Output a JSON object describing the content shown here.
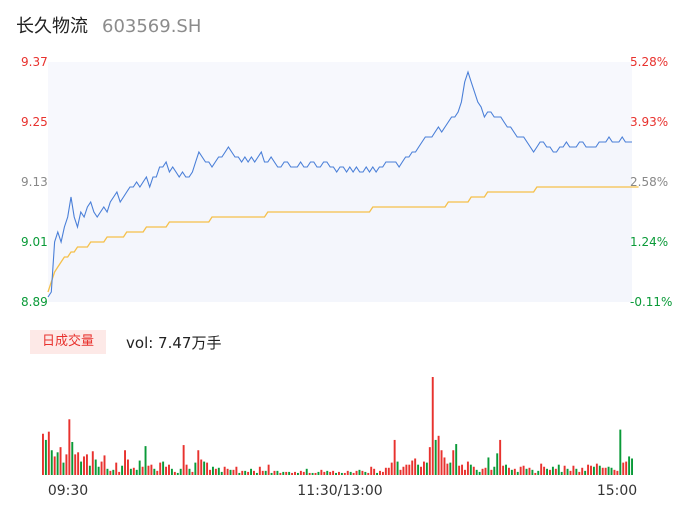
{
  "header": {
    "name": "长久物流",
    "code": "603569.SH"
  },
  "volume_box": {
    "tag": "日成交量",
    "label": "vol: 7.47万手"
  },
  "colors": {
    "price_line": "#4a7fd8",
    "avg_line": "#f5c04a",
    "up": "#e8322e",
    "down": "#0a9a38",
    "area": "#f4f6fc"
  },
  "chart_data": [
    {
      "type": "line",
      "title": "",
      "y_left_ticks": [
        "9.37",
        "9.25",
        "9.13",
        "9.01",
        "8.89"
      ],
      "y_right_ticks": [
        "5.28%",
        "3.93%",
        "2.58%",
        "1.24%",
        "-0.11%"
      ],
      "x_ticks": [
        "09:30",
        "11:30/13:00",
        "15:00"
      ],
      "ylim": [
        8.89,
        9.37
      ],
      "series": [
        {
          "values": [
            8.9,
            8.91,
            9.01,
            9.03,
            9.01,
            9.04,
            9.06,
            9.1,
            9.06,
            9.04,
            9.07,
            9.06,
            9.08,
            9.09,
            9.07,
            9.06,
            9.07,
            9.08,
            9.07,
            9.09,
            9.1,
            9.11,
            9.09,
            9.1,
            9.11,
            9.12,
            9.12,
            9.13,
            9.12,
            9.13,
            9.14,
            9.12,
            9.14,
            9.14,
            9.16,
            9.16,
            9.17,
            9.15,
            9.16,
            9.15,
            9.14,
            9.15,
            9.14,
            9.14,
            9.15,
            9.17,
            9.19,
            9.18,
            9.17,
            9.17,
            9.16,
            9.17,
            9.18,
            9.18,
            9.19,
            9.2,
            9.19,
            9.18,
            9.18,
            9.17,
            9.18,
            9.17,
            9.18,
            9.17,
            9.18,
            9.19,
            9.17,
            9.17,
            9.18,
            9.17,
            9.16,
            9.16,
            9.17,
            9.17,
            9.16,
            9.16,
            9.16,
            9.17,
            9.16,
            9.16,
            9.17,
            9.17,
            9.16,
            9.16,
            9.17,
            9.17,
            9.16,
            9.16,
            9.15,
            9.16,
            9.16,
            9.15,
            9.16,
            9.15,
            9.16,
            9.15,
            9.15,
            9.16,
            9.15,
            9.16,
            9.15,
            9.16,
            9.16,
            9.17,
            9.17,
            9.17,
            9.17,
            9.16,
            9.17,
            9.18,
            9.18,
            9.19,
            9.19,
            9.2,
            9.21,
            9.22,
            9.22,
            9.22,
            9.23,
            9.24,
            9.23,
            9.24,
            9.25,
            9.26,
            9.26,
            9.27,
            9.29,
            9.33,
            9.35,
            9.33,
            9.31,
            9.29,
            9.28,
            9.26,
            9.27,
            9.27,
            9.26,
            9.26,
            9.26,
            9.25,
            9.24,
            9.24,
            9.23,
            9.22,
            9.22,
            9.22,
            9.21,
            9.2,
            9.19,
            9.2,
            9.21,
            9.21,
            9.2,
            9.2,
            9.19,
            9.19,
            9.2,
            9.2,
            9.21,
            9.2,
            9.2,
            9.2,
            9.21,
            9.21,
            9.2,
            9.2,
            9.2,
            9.2,
            9.21,
            9.21,
            9.21,
            9.22,
            9.21,
            9.21,
            9.21,
            9.22,
            9.21,
            9.21,
            9.21
          ],
          "color": "#4a7fd8"
        },
        {
          "values": [
            8.91,
            8.93,
            8.95,
            8.96,
            8.97,
            8.98,
            8.98,
            8.99,
            8.99,
            9.0,
            9.0,
            9.0,
            9.0,
            9.01,
            9.01,
            9.01,
            9.01,
            9.01,
            9.02,
            9.02,
            9.02,
            9.02,
            9.02,
            9.02,
            9.03,
            9.03,
            9.03,
            9.03,
            9.03,
            9.03,
            9.04,
            9.04,
            9.04,
            9.04,
            9.04,
            9.04,
            9.04,
            9.05,
            9.05,
            9.05,
            9.05,
            9.05,
            9.05,
            9.05,
            9.05,
            9.05,
            9.05,
            9.05,
            9.05,
            9.05,
            9.06,
            9.06,
            9.06,
            9.06,
            9.06,
            9.06,
            9.06,
            9.06,
            9.06,
            9.06,
            9.06,
            9.06,
            9.06,
            9.06,
            9.06,
            9.06,
            9.06,
            9.07,
            9.07,
            9.07,
            9.07,
            9.07,
            9.07,
            9.07,
            9.07,
            9.07,
            9.07,
            9.07,
            9.07,
            9.07,
            9.07,
            9.07,
            9.07,
            9.07,
            9.07,
            9.07,
            9.07,
            9.07,
            9.07,
            9.07,
            9.07,
            9.07,
            9.07,
            9.07,
            9.07,
            9.07,
            9.07,
            9.07,
            9.07,
            9.08,
            9.08,
            9.08,
            9.08,
            9.08,
            9.08,
            9.08,
            9.08,
            9.08,
            9.08,
            9.08,
            9.08,
            9.08,
            9.08,
            9.08,
            9.08,
            9.08,
            9.08,
            9.08,
            9.08,
            9.08,
            9.08,
            9.08,
            9.09,
            9.09,
            9.09,
            9.09,
            9.09,
            9.09,
            9.09,
            9.1,
            9.1,
            9.1,
            9.1,
            9.1,
            9.11,
            9.11,
            9.11,
            9.11,
            9.11,
            9.11,
            9.11,
            9.11,
            9.11,
            9.11,
            9.11,
            9.11,
            9.11,
            9.11,
            9.11,
            9.12,
            9.12,
            9.12,
            9.12,
            9.12,
            9.12,
            9.12,
            9.12,
            9.12,
            9.12,
            9.12,
            9.12,
            9.12,
            9.12,
            9.12,
            9.12,
            9.12,
            9.12,
            9.12,
            9.12,
            9.12,
            9.12,
            9.12,
            9.12,
            9.12,
            9.12,
            9.12,
            9.12,
            9.12,
            9.12,
            9.12,
            9.12
          ],
          "color": "#f5c04a"
        }
      ]
    },
    {
      "type": "bar",
      "values": [
        40,
        34,
        42,
        24,
        18,
        22,
        27,
        12,
        20,
        54,
        32,
        20,
        22,
        13,
        18,
        20,
        9,
        23,
        15,
        8,
        13,
        19,
        6,
        4,
        5,
        12,
        3,
        9,
        24,
        15,
        6,
        7,
        5,
        14,
        8,
        28,
        9,
        10,
        6,
        4,
        12,
        13,
        8,
        10,
        6,
        3,
        2,
        6,
        29,
        10,
        6,
        3,
        12,
        24,
        15,
        13,
        12,
        5,
        8,
        6,
        7,
        3,
        8,
        6,
        5,
        5,
        8,
        2,
        4,
        4,
        3,
        6,
        4,
        2,
        8,
        4,
        4,
        10,
        2,
        4,
        4,
        2,
        3,
        3,
        3,
        2,
        3,
        2,
        4,
        3,
        6,
        2,
        2,
        2,
        3,
        5,
        3,
        4,
        3,
        4,
        2,
        3,
        2,
        2,
        4,
        3,
        2,
        4,
        5,
        4,
        3,
        2,
        8,
        6,
        2,
        4,
        3,
        7,
        7,
        12,
        34,
        13,
        5,
        8,
        10,
        10,
        14,
        16,
        10,
        8,
        13,
        12,
        27,
        95,
        34,
        38,
        24,
        17,
        11,
        12,
        24,
        30,
        9,
        10,
        5,
        13,
        10,
        8,
        5,
        3,
        6,
        7,
        17,
        5,
        8,
        21,
        34,
        9,
        10,
        7,
        5,
        6,
        3,
        8,
        9,
        6,
        7,
        5,
        2,
        4,
        11,
        8,
        6,
        5,
        8,
        6,
        10,
        3,
        9,
        6,
        4,
        9,
        6,
        3,
        7,
        4,
        10,
        9,
        8,
        11,
        9,
        7,
        7,
        8,
        7,
        5,
        4,
        44,
        12,
        13,
        18,
        16
      ],
      "colors": [
        "up",
        "down",
        "up",
        "down",
        "up",
        "down",
        "up",
        "down",
        "up",
        "up",
        "down",
        "up",
        "up",
        "down",
        "up",
        "up",
        "down",
        "up",
        "down",
        "down",
        "up",
        "up",
        "down",
        "up",
        "down",
        "up",
        "up",
        "down",
        "up",
        "up",
        "down",
        "up",
        "down",
        "down",
        "up",
        "down",
        "up",
        "up",
        "down",
        "up",
        "up",
        "down",
        "up",
        "up",
        "down",
        "up",
        "down",
        "down",
        "up",
        "up",
        "down",
        "up",
        "down",
        "up",
        "up",
        "down",
        "up",
        "up",
        "down",
        "up",
        "down",
        "down",
        "up",
        "up",
        "down",
        "up",
        "up",
        "down",
        "up",
        "down",
        "up",
        "down",
        "up",
        "down",
        "up",
        "up",
        "down",
        "up",
        "down",
        "up",
        "down",
        "up",
        "down",
        "up",
        "down",
        "up",
        "up",
        "down",
        "up",
        "up",
        "down",
        "up",
        "down",
        "up",
        "down",
        "up",
        "up",
        "down",
        "up",
        "up",
        "down",
        "up",
        "down",
        "up",
        "up",
        "down",
        "up",
        "up",
        "down",
        "up",
        "down",
        "up",
        "up",
        "up",
        "down",
        "up",
        "up",
        "up",
        "up",
        "up",
        "up",
        "down",
        "up",
        "up",
        "up",
        "up",
        "up",
        "up",
        "down",
        "up",
        "up",
        "down",
        "up",
        "up",
        "down",
        "up",
        "up",
        "up",
        "up",
        "down",
        "up",
        "down",
        "up",
        "up",
        "up",
        "up",
        "down",
        "up",
        "down",
        "down",
        "up",
        "up",
        "down",
        "up",
        "down",
        "down",
        "up",
        "up",
        "down",
        "up",
        "down",
        "up",
        "down",
        "up",
        "up",
        "down",
        "up",
        "down",
        "up",
        "down",
        "up",
        "up",
        "down",
        "up",
        "down",
        "up",
        "down",
        "down",
        "up",
        "down",
        "up",
        "up",
        "down",
        "up",
        "up",
        "down",
        "up",
        "up",
        "down",
        "up",
        "down",
        "up",
        "up",
        "down",
        "down",
        "up",
        "up",
        "down",
        "up",
        "up"
      ]
    }
  ]
}
